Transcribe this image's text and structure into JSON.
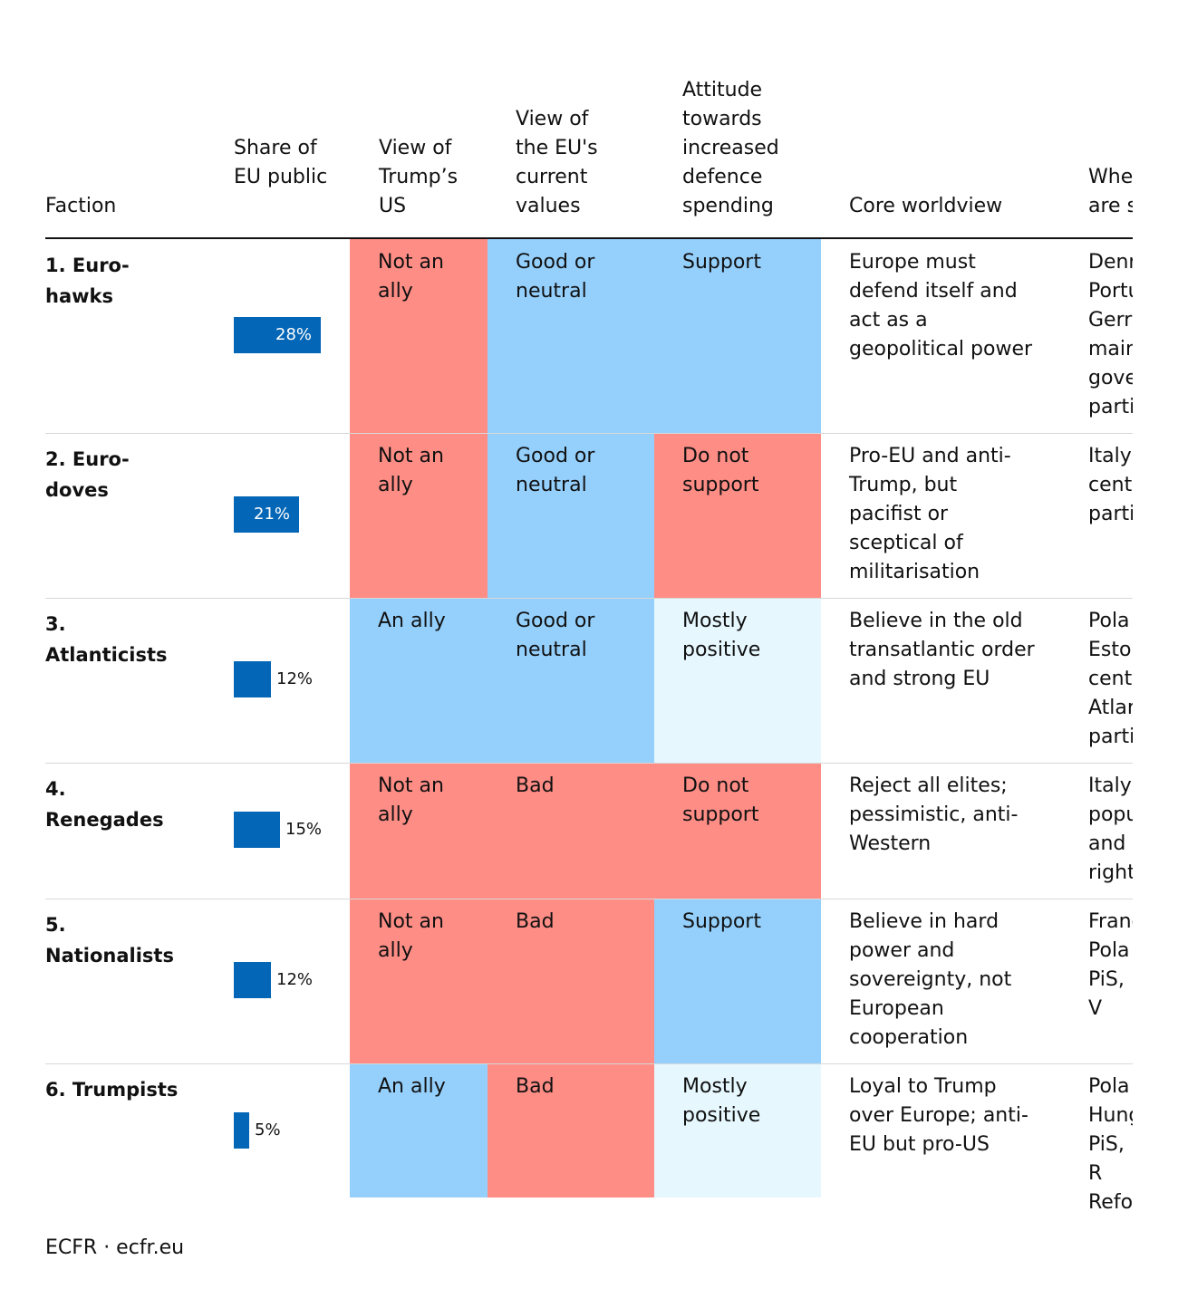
{
  "colors": {
    "negative": "#fe8d86",
    "positive": "#95d0fd",
    "mild": "#e6f7fe",
    "bar": "#0466b6"
  },
  "headers": {
    "faction": "Faction",
    "share": "Share of EU public",
    "trump": "View of Trump’s US",
    "values": "View of the EU's current values",
    "defence": "Attitude towards increased defence spending",
    "worldview": "Core worldview",
    "where": "Where are s"
  },
  "rows": [
    {
      "name": "1. Euro-hawks",
      "share_label": "28%",
      "trump": "Not an ally",
      "trump_tone": "negative",
      "values": "Good or neutral",
      "values_tone": "positive",
      "defence": "Support",
      "defence_tone": "positive",
      "worldview": "Europe must defend itself and act as a geopolitical power",
      "where": "Denr Portu Gerr mair gove parti"
    },
    {
      "name": "2. Euro-doves",
      "share_label": "21%",
      "trump": "Not an ally",
      "trump_tone": "negative",
      "values": "Good or neutral",
      "values_tone": "positive",
      "defence": "Do not support",
      "defence_tone": "negative",
      "worldview": "Pro-EU and anti-Trump, but pacifist or sceptical of militarisation",
      "where": "Italy, centr parti"
    },
    {
      "name": "3. Atlanticists",
      "share_label": "12%",
      "trump": "An ally",
      "trump_tone": "positive",
      "values": "Good or neutral",
      "values_tone": "positive",
      "defence": "Mostly positive",
      "defence_tone": "mild",
      "worldview": "Believe in the old transatlantic order and strong EU",
      "where": "Pola Estor centr Atlar parti"
    },
    {
      "name": "4. Renegades",
      "share_label": "15%",
      "trump": "Not an ally",
      "trump_tone": "negative",
      "values": "Bad",
      "values_tone": "negative",
      "defence": "Do not support",
      "defence_tone": "negative",
      "worldview": "Reject all elites; pessimistic, anti-Western",
      "where": "Italy, popu and right"
    },
    {
      "name": "5. Nationalists",
      "share_label": "12%",
      "trump": "Not an ally",
      "trump_tone": "negative",
      "values": "Bad",
      "values_tone": "negative",
      "defence": "Support",
      "defence_tone": "positive",
      "worldview": "Believe in hard power and sovereignty, not European cooperation",
      "where": "Franc Pola PiS, V"
    },
    {
      "name": "6. Trumpists",
      "share_label": "5%",
      "trump": "An ally",
      "trump_tone": "positive",
      "values": "Bad",
      "values_tone": "negative",
      "defence": "Mostly positive",
      "defence_tone": "mild",
      "worldview": "Loyal to Trump over Europe; anti-EU but pro-US",
      "where": "Pola Hung PiS, R Refo"
    }
  ],
  "chart_data": {
    "type": "table",
    "columns": [
      "Faction",
      "Share of EU public",
      "View of Trump’s US",
      "View of the EU's current values",
      "Attitude towards increased defence spending",
      "Core worldview"
    ],
    "categories": [
      "1. Euro-hawks",
      "2. Euro-doves",
      "3. Atlanticists",
      "4. Renegades",
      "5. Nationalists",
      "6. Trumpists"
    ],
    "values": [
      28,
      21,
      12,
      15,
      12,
      5
    ]
  },
  "footer": "ECFR · ecfr.eu"
}
